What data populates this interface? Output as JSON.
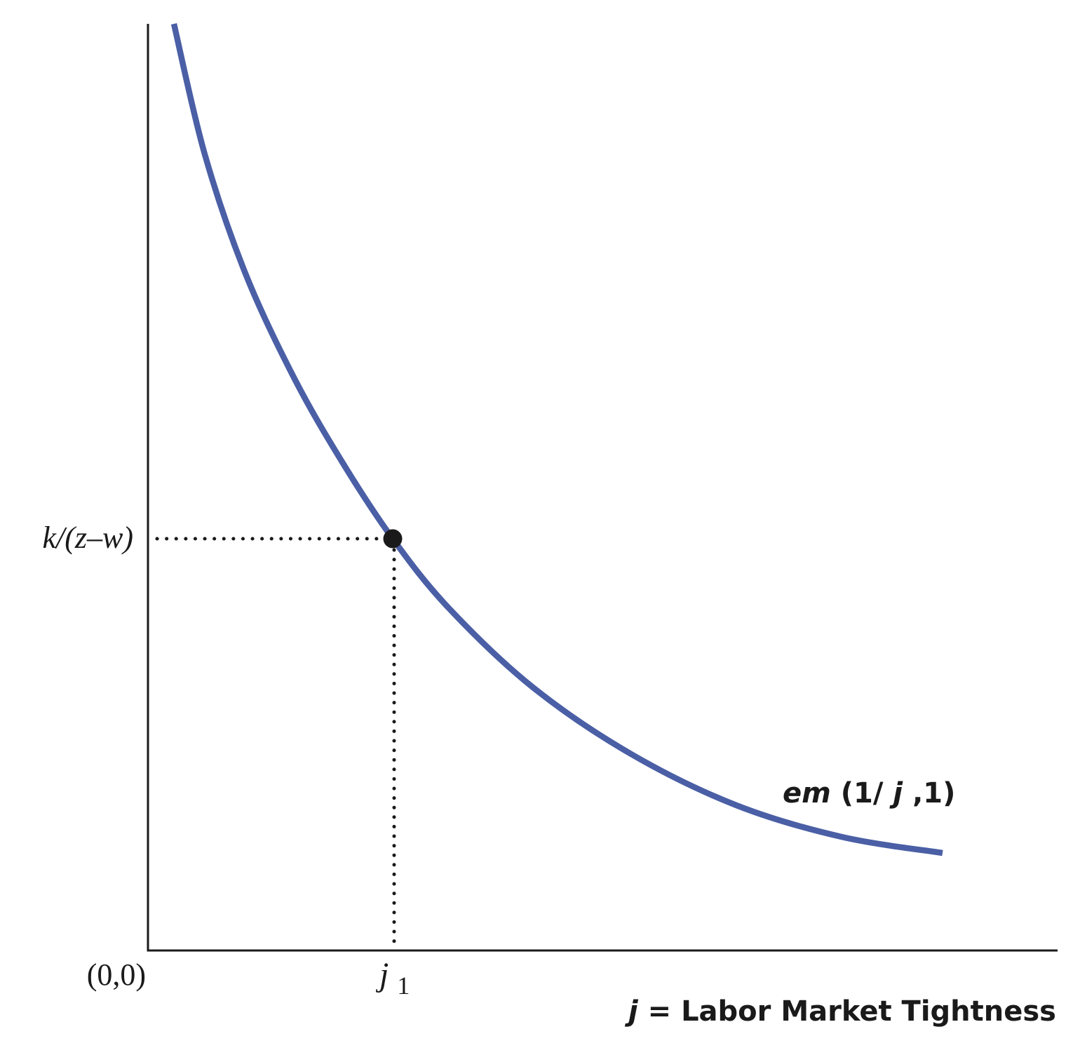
{
  "chart_data": {
    "type": "line",
    "xlabel_var": "j",
    "xlabel_text": "= Labor Market Tightness",
    "ylabel": "",
    "origin_label": "(0,0)",
    "x_marker": {
      "base": "j",
      "sub": "1",
      "value": 1
    },
    "y_marker": {
      "label": "k/(z–w)",
      "value": 1
    },
    "series": [
      {
        "name_italic": "em",
        "name_rest": "(1/",
        "name_var": "j",
        "name_tail": ",1)",
        "color": "#4a5fa5"
      }
    ],
    "point": {
      "x": 1,
      "y": 1,
      "color": "#1a1a1a"
    },
    "colors": {
      "axis": "#1a1a1a",
      "curve": "#4a5fa5",
      "guide": "#1a1a1a"
    },
    "grid": false
  }
}
